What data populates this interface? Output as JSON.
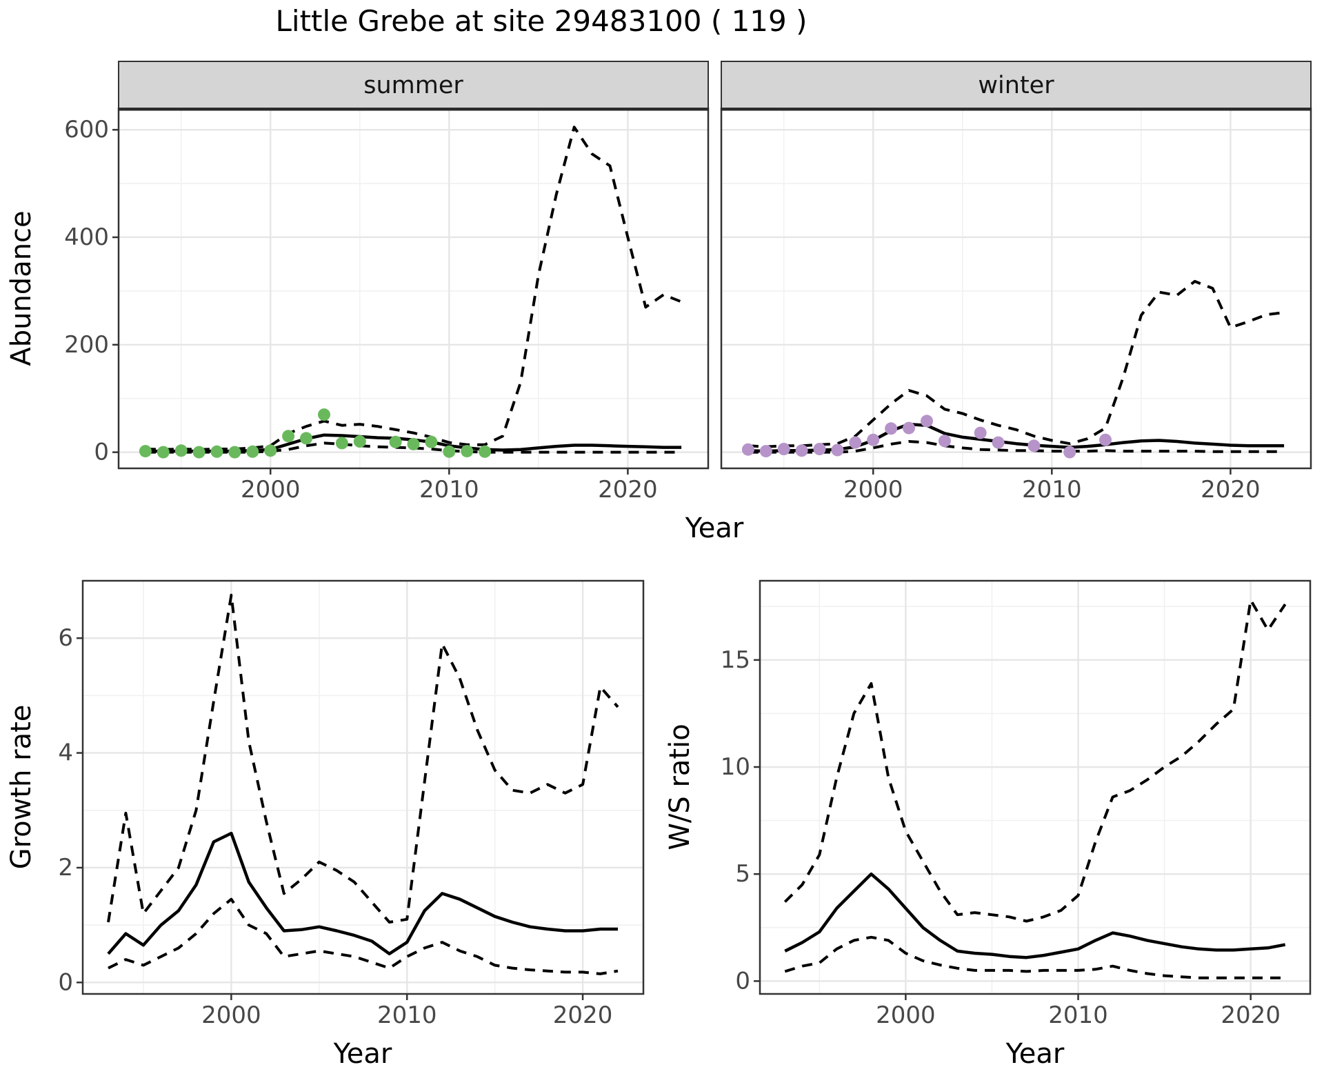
{
  "title": "Little Grebe at site 29483100 ( 119 )",
  "labels": {
    "shared_x_axis_title": "Year"
  },
  "colors": {
    "summer_points": "#69b95c",
    "winter_points": "#b694c9",
    "line": "#000000",
    "strip_background": "#d5d5d5",
    "tick_label": "#474747"
  },
  "chart_data": [
    {
      "id": "abundance-summer",
      "type": "line",
      "facet_label": "summer",
      "xlabel": "Year",
      "ylabel": "Abundance",
      "x_ticks": [
        2000,
        2010,
        2020
      ],
      "y_ticks": [
        0,
        200,
        400,
        600
      ],
      "ylim": [
        0,
        640
      ],
      "x": [
        1993,
        1994,
        1995,
        1996,
        1997,
        1998,
        1999,
        2000,
        2001,
        2002,
        2003,
        2004,
        2005,
        2006,
        2007,
        2008,
        2009,
        2010,
        2011,
        2012,
        2013,
        2014,
        2015,
        2016,
        2017,
        2018,
        2019,
        2020,
        2021,
        2022,
        2023
      ],
      "series": [
        {
          "name": "median",
          "line_style": "solid",
          "values": [
            2,
            2,
            2,
            2,
            2,
            2,
            3,
            5,
            15,
            25,
            32,
            31,
            29,
            27,
            26,
            23,
            19,
            12,
            8,
            5,
            4,
            5,
            8,
            11,
            13,
            13,
            12,
            11,
            10,
            9,
            9
          ]
        },
        {
          "name": "lower-ci",
          "line_style": "dashed",
          "values": [
            0,
            0,
            0,
            0,
            0,
            0,
            0,
            2,
            5,
            12,
            17,
            15,
            12,
            10,
            9,
            8,
            6,
            3,
            1,
            0,
            0,
            0,
            0,
            0,
            0,
            0,
            0,
            0,
            0,
            0,
            0
          ]
        },
        {
          "name": "upper-ci",
          "line_style": "dashed",
          "values": [
            6,
            5,
            6,
            5,
            6,
            6,
            8,
            12,
            35,
            48,
            58,
            50,
            52,
            48,
            42,
            36,
            28,
            18,
            14,
            14,
            30,
            130,
            330,
            480,
            605,
            555,
            533,
            400,
            270,
            293,
            280
          ]
        }
      ],
      "observed_points": {
        "name": "observed-counts",
        "color_key": "summer_points",
        "points": [
          [
            1993,
            2
          ],
          [
            1994,
            0
          ],
          [
            1995,
            3
          ],
          [
            1996,
            0
          ],
          [
            1997,
            1
          ],
          [
            1998,
            0
          ],
          [
            1999,
            1
          ],
          [
            2000,
            3
          ],
          [
            2001,
            30
          ],
          [
            2002,
            26
          ],
          [
            2003,
            70
          ],
          [
            2004,
            17
          ],
          [
            2005,
            20
          ],
          [
            2007,
            19
          ],
          [
            2008,
            15
          ],
          [
            2009,
            19
          ],
          [
            2010,
            1
          ],
          [
            2011,
            2
          ],
          [
            2012,
            1
          ]
        ]
      }
    },
    {
      "id": "abundance-winter",
      "type": "line",
      "facet_label": "winter",
      "xlabel": "Year",
      "ylabel": "Abundance",
      "x_ticks": [
        2000,
        2010,
        2020
      ],
      "y_ticks": [
        0,
        200,
        400,
        600
      ],
      "ylim": [
        0,
        640
      ],
      "x": [
        1993,
        1994,
        1995,
        1996,
        1997,
        1998,
        1999,
        2000,
        2001,
        2002,
        2003,
        2004,
        2005,
        2006,
        2007,
        2008,
        2009,
        2010,
        2011,
        2012,
        2013,
        2014,
        2015,
        2016,
        2017,
        2018,
        2019,
        2020,
        2021,
        2022,
        2023
      ],
      "series": [
        {
          "name": "median",
          "line_style": "solid",
          "values": [
            3,
            2,
            3,
            3,
            4,
            5,
            10,
            22,
            40,
            52,
            50,
            35,
            28,
            24,
            20,
            16,
            13,
            11,
            9,
            11,
            14,
            18,
            21,
            22,
            20,
            17,
            15,
            13,
            12,
            12,
            12
          ]
        },
        {
          "name": "lower-ci",
          "line_style": "dashed",
          "values": [
            0,
            0,
            0,
            0,
            0,
            0,
            2,
            8,
            15,
            20,
            18,
            12,
            8,
            5,
            4,
            3,
            3,
            2,
            2,
            2,
            3,
            2,
            2,
            2,
            2,
            2,
            1,
            1,
            1,
            1,
            1
          ]
        },
        {
          "name": "upper-ci",
          "line_style": "dashed",
          "values": [
            12,
            10,
            12,
            12,
            14,
            16,
            30,
            60,
            90,
            115,
            105,
            80,
            72,
            60,
            50,
            42,
            30,
            22,
            16,
            25,
            45,
            140,
            255,
            298,
            292,
            318,
            305,
            232,
            243,
            256,
            260
          ]
        }
      ],
      "observed_points": {
        "name": "observed-counts",
        "color_key": "winter_points",
        "points": [
          [
            1993,
            5
          ],
          [
            1994,
            2
          ],
          [
            1995,
            6
          ],
          [
            1996,
            3
          ],
          [
            1997,
            6
          ],
          [
            1998,
            4
          ],
          [
            1999,
            18
          ],
          [
            2000,
            23
          ],
          [
            2001,
            44
          ],
          [
            2002,
            45
          ],
          [
            2003,
            58
          ],
          [
            2004,
            21
          ],
          [
            2006,
            36
          ],
          [
            2007,
            18
          ],
          [
            2009,
            12
          ],
          [
            2011,
            0
          ],
          [
            2013,
            23
          ]
        ]
      }
    },
    {
      "id": "growth-rate",
      "type": "line",
      "facet_label": "",
      "xlabel": "Year",
      "ylabel": "Growth rate",
      "x_ticks": [
        2000,
        2010,
        2020
      ],
      "y_ticks": [
        0,
        2,
        4,
        6
      ],
      "ylim": [
        0,
        7
      ],
      "x": [
        1993,
        1994,
        1995,
        1996,
        1997,
        1998,
        1999,
        2000,
        2001,
        2002,
        2003,
        2004,
        2005,
        2006,
        2007,
        2008,
        2009,
        2010,
        2011,
        2012,
        2013,
        2014,
        2015,
        2016,
        2017,
        2018,
        2019,
        2020,
        2021,
        2022
      ],
      "series": [
        {
          "name": "median",
          "line_style": "solid",
          "values": [
            0.5,
            0.85,
            0.65,
            1.0,
            1.25,
            1.7,
            2.45,
            2.6,
            1.75,
            1.3,
            0.9,
            0.92,
            0.97,
            0.9,
            0.82,
            0.72,
            0.5,
            0.7,
            1.25,
            1.55,
            1.45,
            1.3,
            1.15,
            1.05,
            0.97,
            0.93,
            0.9,
            0.9,
            0.93,
            0.93
          ]
        },
        {
          "name": "lower-ci",
          "line_style": "dashed",
          "values": [
            0.25,
            0.4,
            0.3,
            0.45,
            0.6,
            0.85,
            1.2,
            1.45,
            1.0,
            0.85,
            0.45,
            0.5,
            0.55,
            0.5,
            0.45,
            0.35,
            0.25,
            0.45,
            0.6,
            0.7,
            0.55,
            0.45,
            0.3,
            0.25,
            0.22,
            0.2,
            0.18,
            0.18,
            0.15,
            0.2
          ]
        },
        {
          "name": "upper-ci",
          "line_style": "dashed",
          "values": [
            1.05,
            2.95,
            1.2,
            1.6,
            2.0,
            3.0,
            4.9,
            6.75,
            4.2,
            2.8,
            1.55,
            1.8,
            2.1,
            1.95,
            1.75,
            1.4,
            1.05,
            1.1,
            3.5,
            5.9,
            5.3,
            4.4,
            3.7,
            3.35,
            3.3,
            3.45,
            3.3,
            3.45,
            5.15,
            4.8
          ]
        }
      ]
    },
    {
      "id": "ws-ratio",
      "type": "line",
      "facet_label": "",
      "xlabel": "Year",
      "ylabel": "W/S ratio",
      "x_ticks": [
        2000,
        2010,
        2020
      ],
      "y_ticks": [
        0,
        5,
        10,
        15
      ],
      "ylim": [
        0,
        18.7
      ],
      "x": [
        1993,
        1994,
        1995,
        1996,
        1997,
        1998,
        1999,
        2000,
        2001,
        2002,
        2003,
        2004,
        2005,
        2006,
        2007,
        2008,
        2009,
        2010,
        2011,
        2012,
        2013,
        2014,
        2015,
        2016,
        2017,
        2018,
        2019,
        2020,
        2021,
        2022
      ],
      "series": [
        {
          "name": "median",
          "line_style": "solid",
          "values": [
            1.4,
            1.8,
            2.3,
            3.4,
            4.2,
            5.0,
            4.3,
            3.4,
            2.5,
            1.9,
            1.4,
            1.3,
            1.25,
            1.15,
            1.1,
            1.2,
            1.35,
            1.5,
            1.9,
            2.25,
            2.1,
            1.9,
            1.75,
            1.6,
            1.5,
            1.45,
            1.45,
            1.5,
            1.55,
            1.7
          ]
        },
        {
          "name": "lower-ci",
          "line_style": "dashed",
          "values": [
            0.45,
            0.7,
            0.85,
            1.5,
            1.9,
            2.05,
            1.9,
            1.3,
            0.95,
            0.75,
            0.6,
            0.5,
            0.5,
            0.5,
            0.45,
            0.5,
            0.5,
            0.5,
            0.55,
            0.7,
            0.5,
            0.35,
            0.25,
            0.2,
            0.15,
            0.15,
            0.15,
            0.15,
            0.15,
            0.15
          ]
        },
        {
          "name": "upper-ci",
          "line_style": "dashed",
          "values": [
            3.7,
            4.5,
            5.9,
            9.5,
            12.5,
            13.9,
            9.5,
            7.0,
            5.6,
            4.2,
            3.1,
            3.2,
            3.1,
            3.0,
            2.8,
            3.0,
            3.3,
            4.0,
            6.5,
            8.6,
            8.9,
            9.4,
            10.0,
            10.5,
            11.2,
            12.0,
            12.7,
            17.8,
            16.4,
            17.6
          ]
        }
      ]
    }
  ]
}
